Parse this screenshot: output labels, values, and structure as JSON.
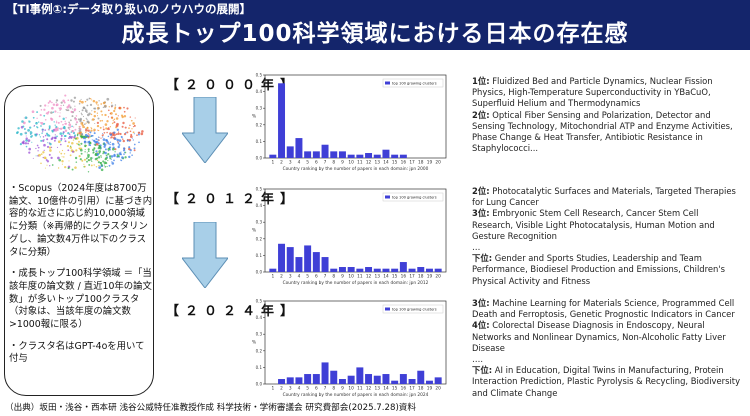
{
  "header": {
    "kicker": "【TI事例①:データ取り扱いのノウハウの展開】",
    "title": "成長トップ100科学領域における日本の存在感",
    "background": "#14256b"
  },
  "left_panel": {
    "bullets": [
      "・Scopus（2024年度は8700万論文、10億件の引用）に基づき内容的な近さに応じ約10,000領域に分類（※再帰的にクラスタリングし、論文数4万件以下のクラスタに分類）",
      "・成長トップ100科学領域 ＝「当該年度の論文数 / 直近10年の論文数」が多いトップ100クラスタ（対象は、当該年度の論文数>1000報に限る）",
      "・クラスタ名はGPT-4oを用いて付与"
    ]
  },
  "arrow_icon": "down-arrow-icon",
  "arrow_color": "#a8cfe8",
  "bar_color": "#3f3fd6",
  "chart_data": [
    {
      "type": "bar",
      "year_label": "【２０００年】",
      "legend": "top 100 growing clusters",
      "legend_position": "top-right",
      "xlabel": "Country ranking by the number of papers in each domain: jpn 2000",
      "ylabel": "%",
      "categories": [
        1,
        2,
        3,
        4,
        5,
        6,
        7,
        8,
        9,
        10,
        11,
        12,
        13,
        14,
        15,
        16,
        17,
        18,
        19,
        20
      ],
      "values": [
        0.02,
        0.45,
        0.07,
        0.12,
        0.04,
        0.04,
        0.08,
        0.04,
        0.04,
        0.02,
        0.02,
        0.03,
        0.02,
        0.05,
        0.02,
        0.02,
        0.0,
        0.0,
        0.0,
        0.0
      ],
      "ylim": [
        0,
        0.5
      ],
      "ytick_labels": [
        "0.0",
        "0.1",
        "0.2",
        "0.3",
        "0.4",
        "0.5"
      ],
      "grid": false
    },
    {
      "type": "bar",
      "year_label": "【２０１２年】",
      "legend": "top 100 growing clusters",
      "legend_position": "top-right",
      "xlabel": "Country ranking by the number of papers in each domain: jpn 2012",
      "ylabel": "%",
      "categories": [
        1,
        2,
        3,
        4,
        5,
        6,
        7,
        8,
        9,
        10,
        11,
        12,
        13,
        14,
        15,
        16,
        17,
        18,
        19,
        20
      ],
      "values": [
        0.02,
        0.17,
        0.15,
        0.09,
        0.16,
        0.12,
        0.09,
        0.02,
        0.03,
        0.03,
        0.02,
        0.03,
        0.02,
        0.02,
        0.02,
        0.06,
        0.02,
        0.03,
        0.02,
        0.02
      ],
      "ylim": [
        0,
        0.5
      ],
      "ytick_labels": [
        "0.0",
        "0.1",
        "0.2",
        "0.3",
        "0.4",
        "0.5"
      ],
      "grid": false
    },
    {
      "type": "bar",
      "year_label": "【２０２４年】",
      "legend": "top 100 growing clusters",
      "legend_position": "top-right",
      "xlabel": "Country ranking by the number of papers in each domain: jpn 2024",
      "ylabel": "%",
      "categories": [
        1,
        2,
        3,
        4,
        5,
        6,
        7,
        8,
        9,
        10,
        11,
        12,
        13,
        14,
        15,
        16,
        17,
        18,
        19,
        20
      ],
      "values": [
        0.0,
        0.03,
        0.04,
        0.04,
        0.06,
        0.06,
        0.13,
        0.08,
        0.03,
        0.05,
        0.1,
        0.06,
        0.05,
        0.06,
        0.02,
        0.06,
        0.03,
        0.08,
        0.02,
        0.04
      ],
      "ylim": [
        0,
        0.5
      ],
      "ytick_labels": [
        "0.0",
        "0.1",
        "0.2",
        "0.3",
        "0.4",
        "0.5"
      ],
      "grid": false
    }
  ],
  "descriptions": [
    [
      {
        "rank": "1位:",
        "text": " Fluidized Bed and Particle Dynamics, Nuclear Fission Physics, High-Temperature Superconductivity in YBaCuO, Superfluid Helium and Thermodynamics"
      },
      {
        "rank": "2位:",
        "text": " Optical Fiber Sensing and Polarization, Detector and Sensing Technology, Mitochondrial ATP and Enzyme Activities, Phase Change & Heat Transfer, Antibiotic Resistance in Staphylococci..."
      }
    ],
    [
      {
        "rank": "2位:",
        "text": " Photocatalytic Surfaces and Materials, Targeted Therapies for Lung Cancer"
      },
      {
        "rank": "3位:",
        "text": " Embryonic Stem Cell Research, Cancer Stem Cell Research, Visible Light Photocatalysis, Human Motion and Gesture Recognition"
      },
      {
        "rank": "",
        "text": "…"
      },
      {
        "rank": "下位:",
        "text": " Gender and Sports Studies, Leadership and Team Performance, Biodiesel Production and Emissions, Children's Physical Activity and Fitness"
      }
    ],
    [
      {
        "rank": "3位:",
        "text": " Machine Learning for Materials Science, Programmed Cell Death and Ferroptosis, Genetic Prognostic Indicators in Cancer"
      },
      {
        "rank": "4位:",
        "text": " Colorectal Disease Diagnosis in Endoscopy, Neural Networks and Nonlinear Dynamics, Non-Alcoholic Fatty Liver Disease"
      },
      {
        "rank": "",
        "text": "…."
      },
      {
        "rank": "下位:",
        "text": " AI in Education, Digital Twins in Manufacturing, Protein Interaction Prediction, Plastic Pyrolysis & Recycling, Biodiversity and Climate Change"
      }
    ]
  ],
  "source": "（出典）坂田・浅谷・西本研 浅谷公威特任准教授作成 科学技術・学術審議会 研究費部会(2025.7.28)資料"
}
